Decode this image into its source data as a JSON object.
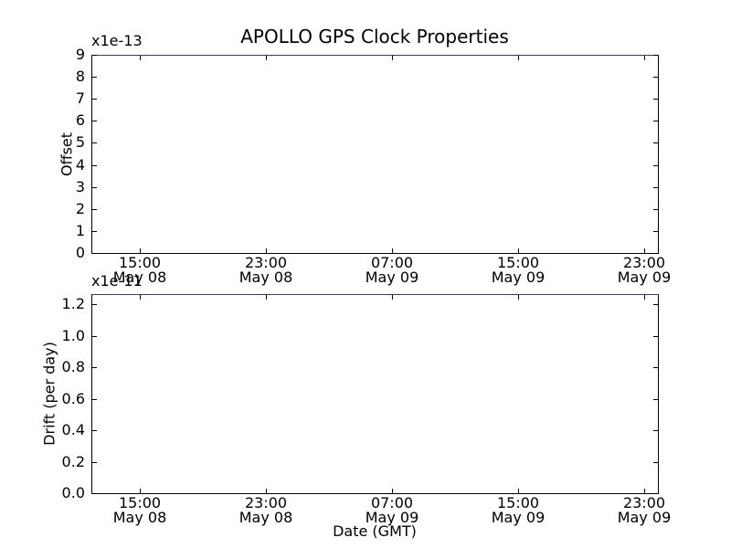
{
  "figure": {
    "background": "#ffffff"
  },
  "colors": {
    "spine": "#000000",
    "top_spine": "#3a3a64",
    "tick": "#000000",
    "text": "#000000",
    "background": "#ffffff"
  },
  "chart_data": [
    {
      "type": "line",
      "subplot": "top",
      "title": "APOLLO GPS Clock Properties",
      "xlabel": "",
      "ylabel": "Offset",
      "y_scale_offset_text": "x1e-13",
      "ylim": [
        0,
        9
      ],
      "yticks": [
        0,
        1,
        2,
        3,
        4,
        5,
        6,
        7,
        8,
        9
      ],
      "ytick_labels": [
        "0",
        "1",
        "2",
        "3",
        "4",
        "5",
        "6",
        "7",
        "8",
        "9"
      ],
      "xlim_hours_since_may08_0000": [
        11.93,
        47.87
      ],
      "xticks_hours_since_may08_0000": [
        15,
        23,
        31,
        39,
        47
      ],
      "xtick_labels": [
        [
          "15:00",
          "May 08"
        ],
        [
          "23:00",
          "May 08"
        ],
        [
          "07:00",
          "May 09"
        ],
        [
          "15:00",
          "May 09"
        ],
        [
          "23:00",
          "May 09"
        ]
      ],
      "series": [],
      "grid": false,
      "legend": null
    },
    {
      "type": "line",
      "subplot": "bottom",
      "title": "",
      "xlabel": "Date (GMT)",
      "ylabel": "Drift (per day)",
      "y_scale_offset_text": "x1e-11",
      "ylim": [
        0,
        1.2638
      ],
      "yticks": [
        0.0,
        0.2,
        0.4,
        0.6,
        0.8,
        1.0,
        1.2
      ],
      "ytick_labels": [
        "0.0",
        "0.2",
        "0.4",
        "0.6",
        "0.8",
        "1.0",
        "1.2"
      ],
      "xlim_hours_since_may08_0000": [
        11.93,
        47.87
      ],
      "xticks_hours_since_may08_0000": [
        15,
        23,
        31,
        39,
        47
      ],
      "xtick_labels": [
        [
          "15:00",
          "May 08"
        ],
        [
          "23:00",
          "May 08"
        ],
        [
          "07:00",
          "May 09"
        ],
        [
          "15:00",
          "May 09"
        ],
        [
          "23:00",
          "May 09"
        ]
      ],
      "series": [],
      "grid": false,
      "legend": null
    }
  ]
}
